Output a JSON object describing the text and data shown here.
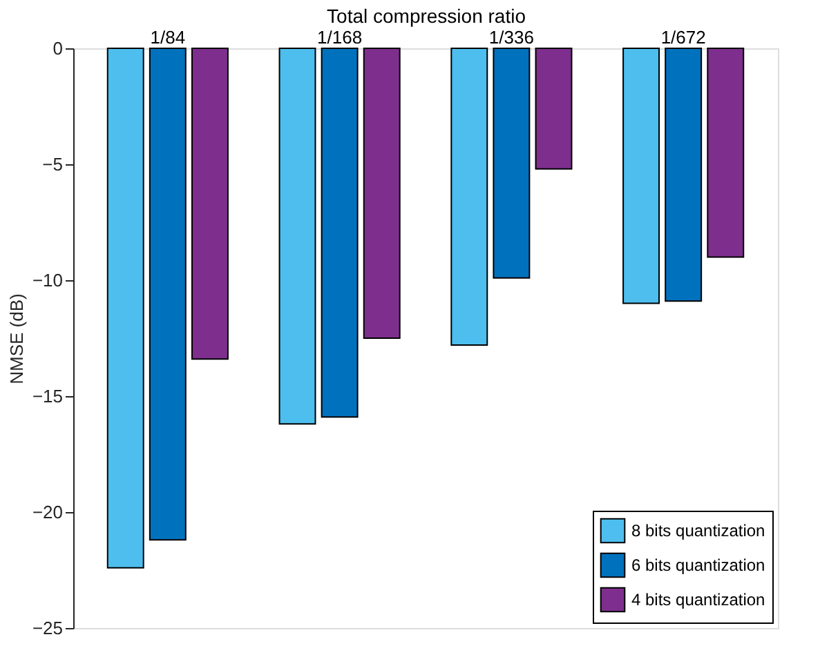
{
  "chart_data": {
    "type": "bar",
    "xlabel": "Total compression ratio",
    "ylabel": "NMSE (dB)",
    "categories": [
      "1/84",
      "1/168",
      "1/336",
      "1/672"
    ],
    "series": [
      {
        "name": "8 bits quantization",
        "color": "#4dbeee",
        "values": [
          -22.4,
          -16.2,
          -12.8,
          -11.0
        ]
      },
      {
        "name": "6 bits quantization",
        "color": "#0072bd",
        "values": [
          -21.2,
          -15.9,
          -9.9,
          -10.9
        ]
      },
      {
        "name": "4 bits quantization",
        "color": "#7e2f8e",
        "values": [
          -13.4,
          -12.5,
          -5.2,
          -9.0
        ]
      }
    ],
    "ylim": [
      -25,
      0
    ],
    "yticks": [
      -25,
      -20,
      -15,
      -10,
      -5,
      0
    ],
    "grid": false,
    "legend": "bottom right"
  }
}
